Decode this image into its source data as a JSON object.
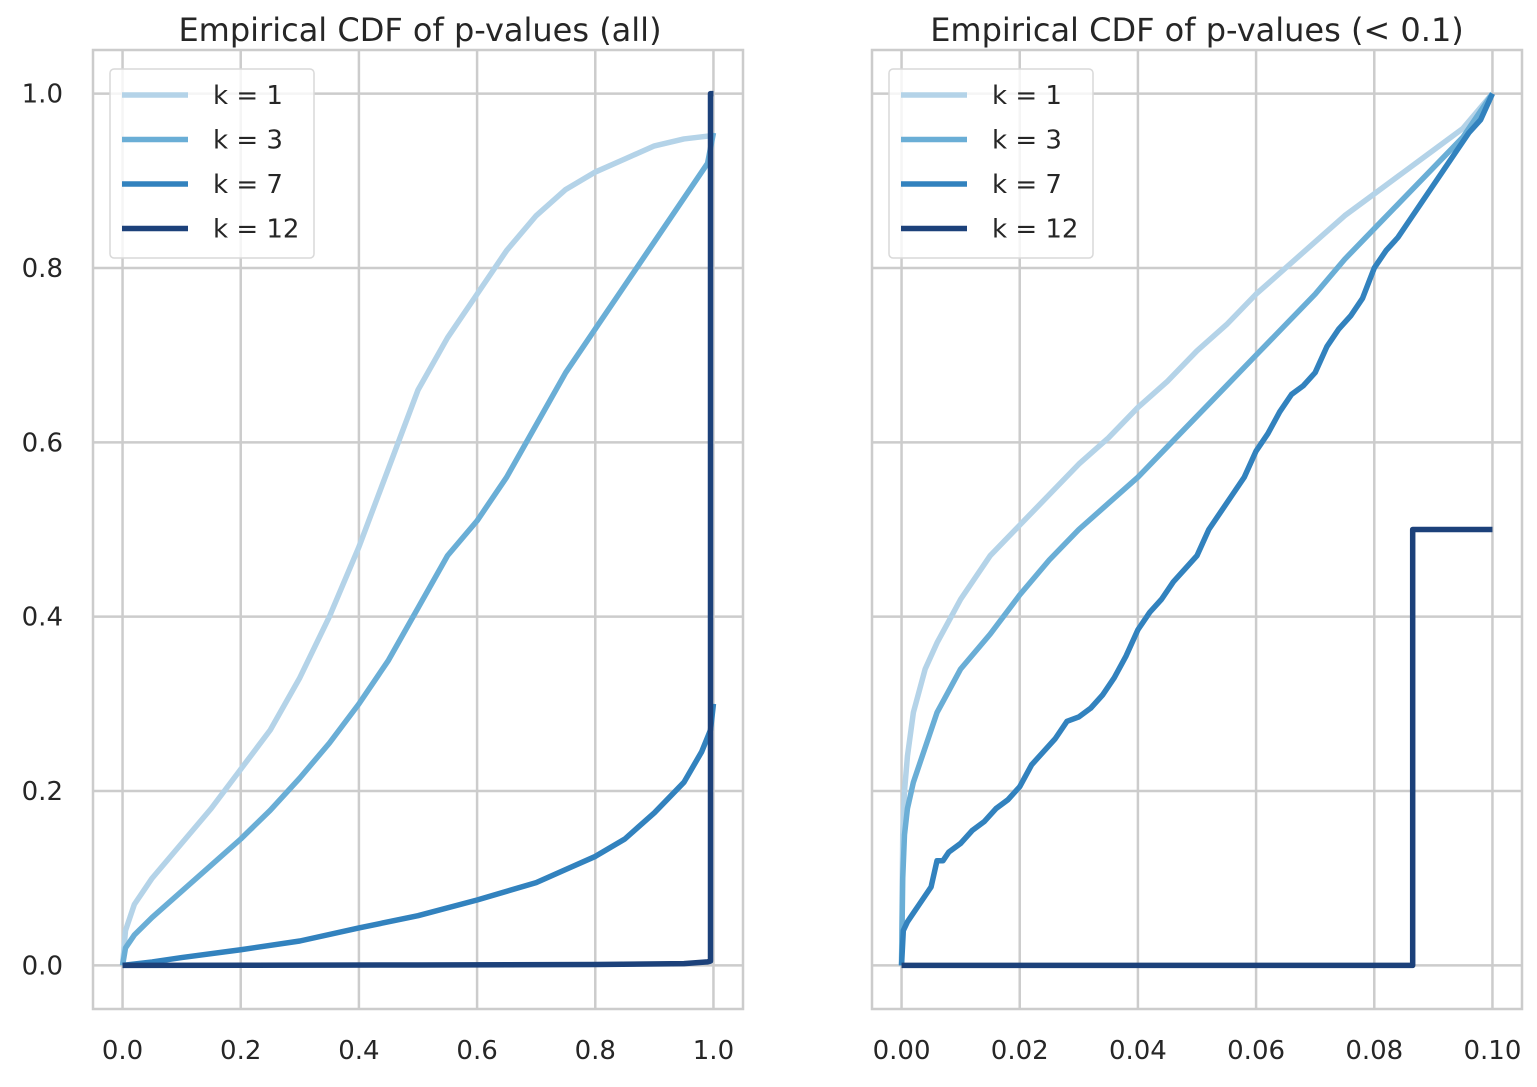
{
  "chart_data": [
    {
      "type": "line",
      "title": "Empirical CDF of p-values (all)",
      "xlabel": "",
      "ylabel": "",
      "xlim": [
        -0.05,
        1.05
      ],
      "ylim": [
        -0.05,
        1.05
      ],
      "xticks": [
        0.0,
        0.2,
        0.4,
        0.6,
        0.8,
        1.0
      ],
      "xtick_labels": [
        "0.0",
        "0.2",
        "0.4",
        "0.6",
        "0.8",
        "1.0"
      ],
      "yticks": [
        0.0,
        0.2,
        0.4,
        0.6,
        0.8,
        1.0
      ],
      "ytick_labels": [
        "0.0",
        "0.2",
        "0.4",
        "0.6",
        "0.8",
        "1.0"
      ],
      "grid": true,
      "legend_position": "top-left",
      "series": [
        {
          "name": "k = 1",
          "color": "#b4d3e8",
          "x": [
            0.0,
            0.005,
            0.02,
            0.05,
            0.1,
            0.15,
            0.2,
            0.25,
            0.3,
            0.35,
            0.4,
            0.45,
            0.5,
            0.55,
            0.6,
            0.65,
            0.7,
            0.75,
            0.8,
            0.85,
            0.9,
            0.95,
            1.0
          ],
          "y": [
            0.0,
            0.04,
            0.07,
            0.1,
            0.14,
            0.18,
            0.225,
            0.27,
            0.33,
            0.4,
            0.48,
            0.57,
            0.66,
            0.72,
            0.77,
            0.82,
            0.86,
            0.89,
            0.91,
            0.925,
            0.94,
            0.948,
            0.952
          ]
        },
        {
          "name": "k = 3",
          "color": "#6aaed6",
          "x": [
            0.0,
            0.005,
            0.02,
            0.05,
            0.1,
            0.15,
            0.2,
            0.25,
            0.3,
            0.35,
            0.4,
            0.45,
            0.5,
            0.55,
            0.6,
            0.65,
            0.7,
            0.75,
            0.8,
            0.85,
            0.9,
            0.95,
            0.99,
            1.0
          ],
          "y": [
            0.0,
            0.02,
            0.035,
            0.055,
            0.085,
            0.115,
            0.145,
            0.178,
            0.215,
            0.255,
            0.3,
            0.35,
            0.41,
            0.47,
            0.51,
            0.56,
            0.62,
            0.68,
            0.73,
            0.78,
            0.83,
            0.88,
            0.92,
            0.955
          ]
        },
        {
          "name": "k = 7",
          "color": "#3282be",
          "x": [
            0.0,
            0.05,
            0.1,
            0.2,
            0.3,
            0.4,
            0.5,
            0.6,
            0.7,
            0.75,
            0.8,
            0.85,
            0.9,
            0.95,
            0.98,
            0.995,
            1.0
          ],
          "y": [
            0.0,
            0.004,
            0.009,
            0.018,
            0.028,
            0.043,
            0.057,
            0.075,
            0.095,
            0.11,
            0.125,
            0.145,
            0.175,
            0.21,
            0.245,
            0.27,
            0.3
          ]
        },
        {
          "name": "k = 12",
          "color": "#1c417a",
          "x": [
            0.0,
            0.5,
            0.8,
            0.95,
            0.99,
            0.995,
            0.995,
            1.0
          ],
          "y": [
            0.0,
            0.0005,
            0.001,
            0.002,
            0.004,
            0.005,
            1.0,
            1.0
          ]
        }
      ]
    },
    {
      "type": "line",
      "title": "Empirical CDF of p-values (< 0.1)",
      "xlabel": "",
      "ylabel": "",
      "xlim": [
        -0.005,
        0.105
      ],
      "ylim": [
        -0.05,
        1.05
      ],
      "xticks": [
        0.0,
        0.02,
        0.04,
        0.06,
        0.08,
        0.1
      ],
      "xtick_labels": [
        "0.00",
        "0.02",
        "0.04",
        "0.06",
        "0.08",
        "0.10"
      ],
      "yticks": [
        0.0,
        0.2,
        0.4,
        0.6,
        0.8,
        1.0
      ],
      "ytick_labels": [],
      "grid": true,
      "legend_position": "top-left",
      "series": [
        {
          "name": "k = 1",
          "color": "#b4d3e8",
          "x": [
            0.0,
            0.0002,
            0.0005,
            0.001,
            0.002,
            0.004,
            0.006,
            0.008,
            0.01,
            0.015,
            0.02,
            0.025,
            0.03,
            0.035,
            0.04,
            0.045,
            0.05,
            0.055,
            0.06,
            0.065,
            0.07,
            0.075,
            0.08,
            0.085,
            0.09,
            0.095,
            0.1
          ],
          "y": [
            0.0,
            0.15,
            0.2,
            0.24,
            0.29,
            0.34,
            0.37,
            0.395,
            0.42,
            0.47,
            0.505,
            0.54,
            0.575,
            0.605,
            0.64,
            0.67,
            0.705,
            0.735,
            0.77,
            0.8,
            0.83,
            0.86,
            0.885,
            0.91,
            0.935,
            0.96,
            1.0
          ]
        },
        {
          "name": "k = 3",
          "color": "#6aaed6",
          "x": [
            0.0,
            0.0002,
            0.0005,
            0.001,
            0.002,
            0.004,
            0.006,
            0.008,
            0.01,
            0.015,
            0.02,
            0.025,
            0.03,
            0.035,
            0.04,
            0.045,
            0.05,
            0.055,
            0.06,
            0.065,
            0.07,
            0.075,
            0.08,
            0.085,
            0.09,
            0.095,
            0.1
          ],
          "y": [
            0.0,
            0.1,
            0.15,
            0.18,
            0.21,
            0.25,
            0.29,
            0.315,
            0.34,
            0.38,
            0.425,
            0.465,
            0.5,
            0.53,
            0.56,
            0.595,
            0.63,
            0.665,
            0.7,
            0.735,
            0.77,
            0.81,
            0.845,
            0.88,
            0.915,
            0.95,
            1.0
          ]
        },
        {
          "name": "k = 7",
          "color": "#3282be",
          "x": [
            0.0,
            0.0003,
            0.001,
            0.002,
            0.003,
            0.005,
            0.006,
            0.007,
            0.008,
            0.01,
            0.012,
            0.014,
            0.016,
            0.018,
            0.02,
            0.022,
            0.024,
            0.026,
            0.028,
            0.03,
            0.032,
            0.034,
            0.036,
            0.038,
            0.04,
            0.042,
            0.044,
            0.046,
            0.048,
            0.05,
            0.052,
            0.054,
            0.056,
            0.058,
            0.06,
            0.062,
            0.064,
            0.066,
            0.068,
            0.07,
            0.072,
            0.074,
            0.076,
            0.078,
            0.08,
            0.082,
            0.084,
            0.086,
            0.088,
            0.09,
            0.092,
            0.094,
            0.096,
            0.098,
            0.1
          ],
          "y": [
            0.0,
            0.04,
            0.05,
            0.06,
            0.07,
            0.09,
            0.12,
            0.12,
            0.13,
            0.14,
            0.155,
            0.165,
            0.18,
            0.19,
            0.205,
            0.23,
            0.245,
            0.26,
            0.28,
            0.285,
            0.295,
            0.31,
            0.33,
            0.355,
            0.385,
            0.405,
            0.42,
            0.44,
            0.455,
            0.47,
            0.5,
            0.52,
            0.54,
            0.56,
            0.59,
            0.61,
            0.635,
            0.655,
            0.665,
            0.68,
            0.71,
            0.73,
            0.745,
            0.765,
            0.8,
            0.82,
            0.835,
            0.855,
            0.875,
            0.895,
            0.915,
            0.935,
            0.955,
            0.97,
            1.0
          ]
        },
        {
          "name": "k = 12",
          "color": "#1c417a",
          "x": [
            0.0,
            0.0865,
            0.0865,
            0.1
          ],
          "y": [
            0.0,
            0.0,
            0.5,
            0.5
          ]
        }
      ]
    }
  ]
}
